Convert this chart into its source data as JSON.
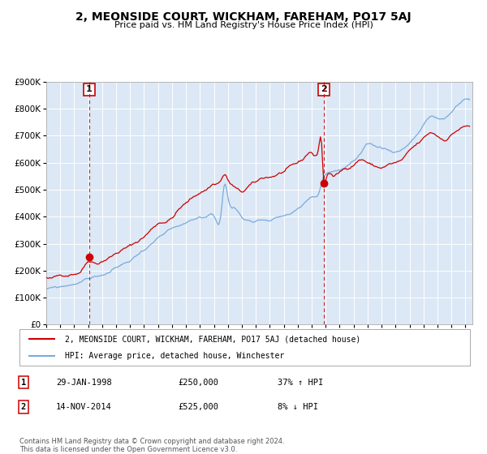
{
  "title": "2, MEONSIDE COURT, WICKHAM, FAREHAM, PO17 5AJ",
  "subtitle": "Price paid vs. HM Land Registry's House Price Index (HPI)",
  "legend_line1": "2, MEONSIDE COURT, WICKHAM, FAREHAM, PO17 5AJ (detached house)",
  "legend_line2": "HPI: Average price, detached house, Winchester",
  "annotation1_date": "29-JAN-1998",
  "annotation1_price": "£250,000",
  "annotation1_hpi": "37% ↑ HPI",
  "annotation2_date": "14-NOV-2014",
  "annotation2_price": "£525,000",
  "annotation2_hpi": "8% ↓ HPI",
  "footer": "Contains HM Land Registry data © Crown copyright and database right 2024.\nThis data is licensed under the Open Government Licence v3.0.",
  "sale1_x": 1998.08,
  "sale1_y": 250000,
  "sale2_x": 2014.87,
  "sale2_y": 525000,
  "vline1_x": 1998.08,
  "vline2_x": 2014.87,
  "red_color": "#cc0000",
  "blue_color": "#7aaadd",
  "bg_color": "#dce8f5",
  "plot_bg": "#ffffff",
  "ylim": [
    0,
    900000
  ],
  "xlim_start": 1995.0,
  "xlim_end": 2025.5,
  "red_anchors": [
    [
      1995.0,
      175000
    ],
    [
      1995.5,
      170000
    ],
    [
      1996.0,
      178000
    ],
    [
      1996.5,
      185000
    ],
    [
      1997.0,
      195000
    ],
    [
      1997.5,
      210000
    ],
    [
      1998.08,
      250000
    ],
    [
      1998.5,
      245000
    ],
    [
      1999.0,
      255000
    ],
    [
      1999.5,
      270000
    ],
    [
      2000.0,
      285000
    ],
    [
      2000.5,
      300000
    ],
    [
      2001.0,
      310000
    ],
    [
      2001.5,
      325000
    ],
    [
      2002.0,
      345000
    ],
    [
      2002.5,
      370000
    ],
    [
      2003.0,
      395000
    ],
    [
      2003.5,
      405000
    ],
    [
      2004.0,
      420000
    ],
    [
      2004.5,
      450000
    ],
    [
      2005.0,
      470000
    ],
    [
      2005.5,
      490000
    ],
    [
      2006.0,
      510000
    ],
    [
      2006.5,
      525000
    ],
    [
      2007.0,
      545000
    ],
    [
      2007.5,
      560000
    ],
    [
      2007.75,
      580000
    ],
    [
      2008.0,
      560000
    ],
    [
      2008.5,
      530000
    ],
    [
      2009.0,
      510000
    ],
    [
      2009.5,
      530000
    ],
    [
      2010.0,
      540000
    ],
    [
      2010.5,
      555000
    ],
    [
      2011.0,
      560000
    ],
    [
      2011.5,
      570000
    ],
    [
      2012.0,
      580000
    ],
    [
      2012.5,
      590000
    ],
    [
      2013.0,
      600000
    ],
    [
      2013.5,
      620000
    ],
    [
      2014.0,
      640000
    ],
    [
      2014.5,
      660000
    ],
    [
      2014.7,
      680000
    ],
    [
      2014.87,
      525000
    ],
    [
      2015.0,
      535000
    ],
    [
      2015.5,
      555000
    ],
    [
      2016.0,
      565000
    ],
    [
      2016.5,
      580000
    ],
    [
      2017.0,
      600000
    ],
    [
      2017.5,
      620000
    ],
    [
      2018.0,
      610000
    ],
    [
      2018.5,
      595000
    ],
    [
      2019.0,
      590000
    ],
    [
      2019.5,
      600000
    ],
    [
      2020.0,
      605000
    ],
    [
      2020.5,
      615000
    ],
    [
      2021.0,
      640000
    ],
    [
      2021.5,
      660000
    ],
    [
      2022.0,
      680000
    ],
    [
      2022.5,
      700000
    ],
    [
      2023.0,
      690000
    ],
    [
      2023.5,
      680000
    ],
    [
      2024.0,
      700000
    ],
    [
      2024.5,
      720000
    ],
    [
      2025.3,
      730000
    ]
  ],
  "blue_anchors": [
    [
      1995.0,
      130000
    ],
    [
      1995.5,
      132000
    ],
    [
      1996.0,
      135000
    ],
    [
      1996.5,
      140000
    ],
    [
      1997.0,
      148000
    ],
    [
      1997.5,
      158000
    ],
    [
      1998.0,
      168000
    ],
    [
      1998.5,
      175000
    ],
    [
      1999.0,
      182000
    ],
    [
      1999.5,
      192000
    ],
    [
      2000.0,
      205000
    ],
    [
      2000.5,
      218000
    ],
    [
      2001.0,
      232000
    ],
    [
      2001.5,
      252000
    ],
    [
      2002.0,
      275000
    ],
    [
      2002.5,
      295000
    ],
    [
      2003.0,
      315000
    ],
    [
      2003.5,
      328000
    ],
    [
      2004.0,
      338000
    ],
    [
      2004.5,
      345000
    ],
    [
      2005.0,
      352000
    ],
    [
      2005.5,
      358000
    ],
    [
      2006.0,
      365000
    ],
    [
      2006.5,
      372000
    ],
    [
      2007.0,
      378000
    ],
    [
      2007.5,
      385000
    ],
    [
      2007.75,
      500000
    ],
    [
      2008.0,
      450000
    ],
    [
      2008.5,
      410000
    ],
    [
      2009.0,
      375000
    ],
    [
      2009.5,
      365000
    ],
    [
      2010.0,
      370000
    ],
    [
      2010.5,
      378000
    ],
    [
      2011.0,
      382000
    ],
    [
      2011.5,
      390000
    ],
    [
      2012.0,
      398000
    ],
    [
      2012.5,
      408000
    ],
    [
      2013.0,
      420000
    ],
    [
      2013.5,
      440000
    ],
    [
      2014.0,
      460000
    ],
    [
      2014.5,
      475000
    ],
    [
      2014.87,
      540000
    ],
    [
      2015.0,
      548000
    ],
    [
      2015.5,
      558000
    ],
    [
      2016.0,
      565000
    ],
    [
      2016.5,
      578000
    ],
    [
      2017.0,
      595000
    ],
    [
      2017.5,
      615000
    ],
    [
      2018.0,
      640000
    ],
    [
      2018.5,
      635000
    ],
    [
      2019.0,
      628000
    ],
    [
      2019.5,
      622000
    ],
    [
      2020.0,
      618000
    ],
    [
      2020.5,
      630000
    ],
    [
      2021.0,
      655000
    ],
    [
      2021.5,
      685000
    ],
    [
      2022.0,
      720000
    ],
    [
      2022.5,
      750000
    ],
    [
      2023.0,
      740000
    ],
    [
      2023.5,
      735000
    ],
    [
      2024.0,
      760000
    ],
    [
      2024.5,
      790000
    ],
    [
      2025.3,
      810000
    ]
  ]
}
